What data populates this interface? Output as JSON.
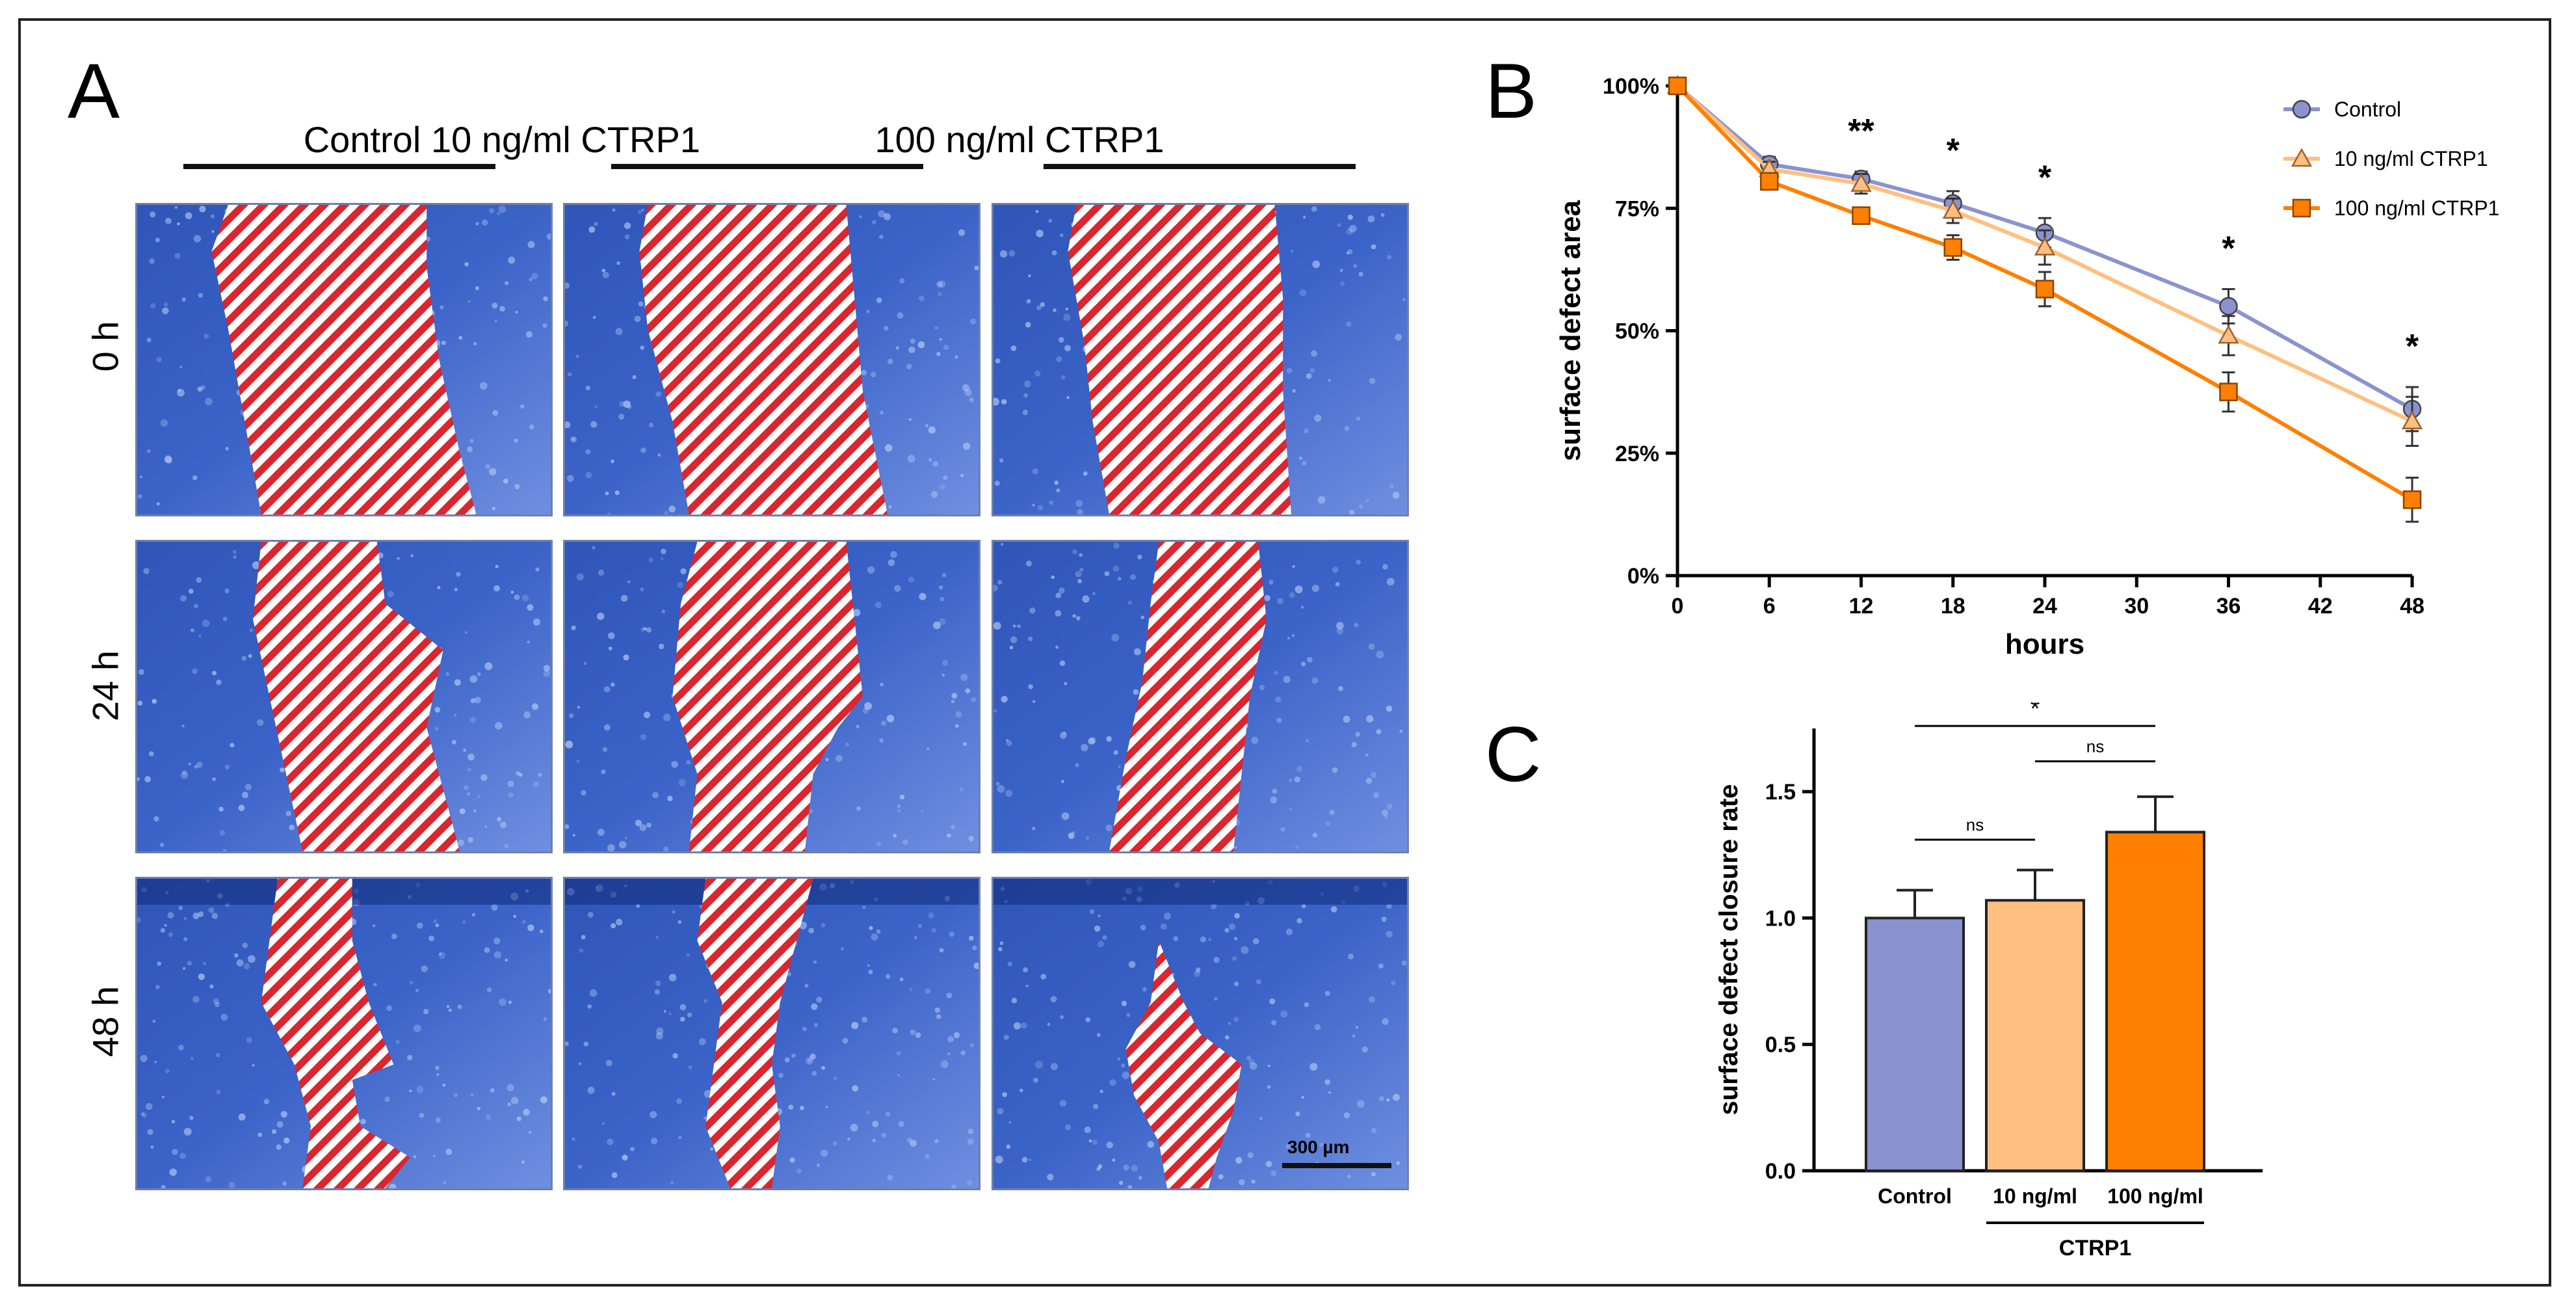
{
  "panelA": {
    "letter": "A",
    "columns": [
      "Control",
      "10 ng/ml CTRP1",
      "100 ng/ml CTRP1"
    ],
    "rows": [
      "0 h",
      "24 h",
      "48 h"
    ],
    "scale_bar": "300 µm"
  },
  "panelB": {
    "letter": "B"
  },
  "panelC": {
    "letter": "C"
  },
  "colors": {
    "control": "#8a93cf",
    "ctrp10": "#ffbf80",
    "ctrp100": "#ff7f00",
    "wound_red": "#d9262f",
    "tissue_blue": "#3b63c8"
  },
  "chart_data": [
    {
      "type": "line",
      "title": "",
      "xlabel": "hours",
      "ylabel": "surface defect area",
      "x": [
        0,
        6,
        12,
        18,
        24,
        36,
        48
      ],
      "xticks": [
        "0",
        "6",
        "12",
        "18",
        "24",
        "30",
        "36",
        "42",
        "48"
      ],
      "xlim": [
        0,
        48
      ],
      "ylim": [
        0,
        100
      ],
      "yticks": [
        "0%",
        "25%",
        "50%",
        "75%",
        "100%"
      ],
      "legend": "top-right",
      "series": [
        {
          "name": "Control",
          "marker": "circle",
          "values": [
            100,
            84,
            81,
            76,
            70,
            55,
            34
          ],
          "errors": [
            0,
            1.5,
            1.5,
            2.5,
            3,
            3.5,
            4.5
          ]
        },
        {
          "name": "10 ng/ml CTRP1",
          "marker": "triangle",
          "values": [
            100,
            83,
            80,
            74.5,
            67,
            49,
            31.5
          ],
          "errors": [
            0,
            1.5,
            2,
            2.5,
            3.5,
            4,
            5
          ]
        },
        {
          "name": "100 ng/ml CTRP1",
          "marker": "square",
          "values": [
            100,
            80.5,
            73.5,
            67,
            58.5,
            37.5,
            15.5
          ],
          "errors": [
            0,
            1.5,
            1.5,
            2.5,
            3.5,
            4,
            4.5
          ]
        }
      ],
      "annotations": [
        {
          "x": 12,
          "text": "**"
        },
        {
          "x": 18,
          "text": "*"
        },
        {
          "x": 24,
          "text": "*"
        },
        {
          "x": 36,
          "text": "*"
        },
        {
          "x": 48,
          "text": "*"
        }
      ]
    },
    {
      "type": "bar",
      "title": "",
      "xlabel": "",
      "ylabel": "surface defect closure rate",
      "categories": [
        "Control",
        "10 ng/ml",
        "100 ng/ml"
      ],
      "values": [
        1.0,
        1.07,
        1.34
      ],
      "errors": [
        0.11,
        0.12,
        0.14
      ],
      "ylim": [
        0,
        1.75
      ],
      "yticks": [
        "0.0",
        "0.5",
        "1.0",
        "1.5"
      ],
      "group_label": "CTRP1",
      "comparisons": [
        {
          "from": 0,
          "to": 1,
          "text": "ns"
        },
        {
          "from": 1,
          "to": 2,
          "text": "ns"
        },
        {
          "from": 0,
          "to": 2,
          "text": "*"
        }
      ]
    }
  ]
}
